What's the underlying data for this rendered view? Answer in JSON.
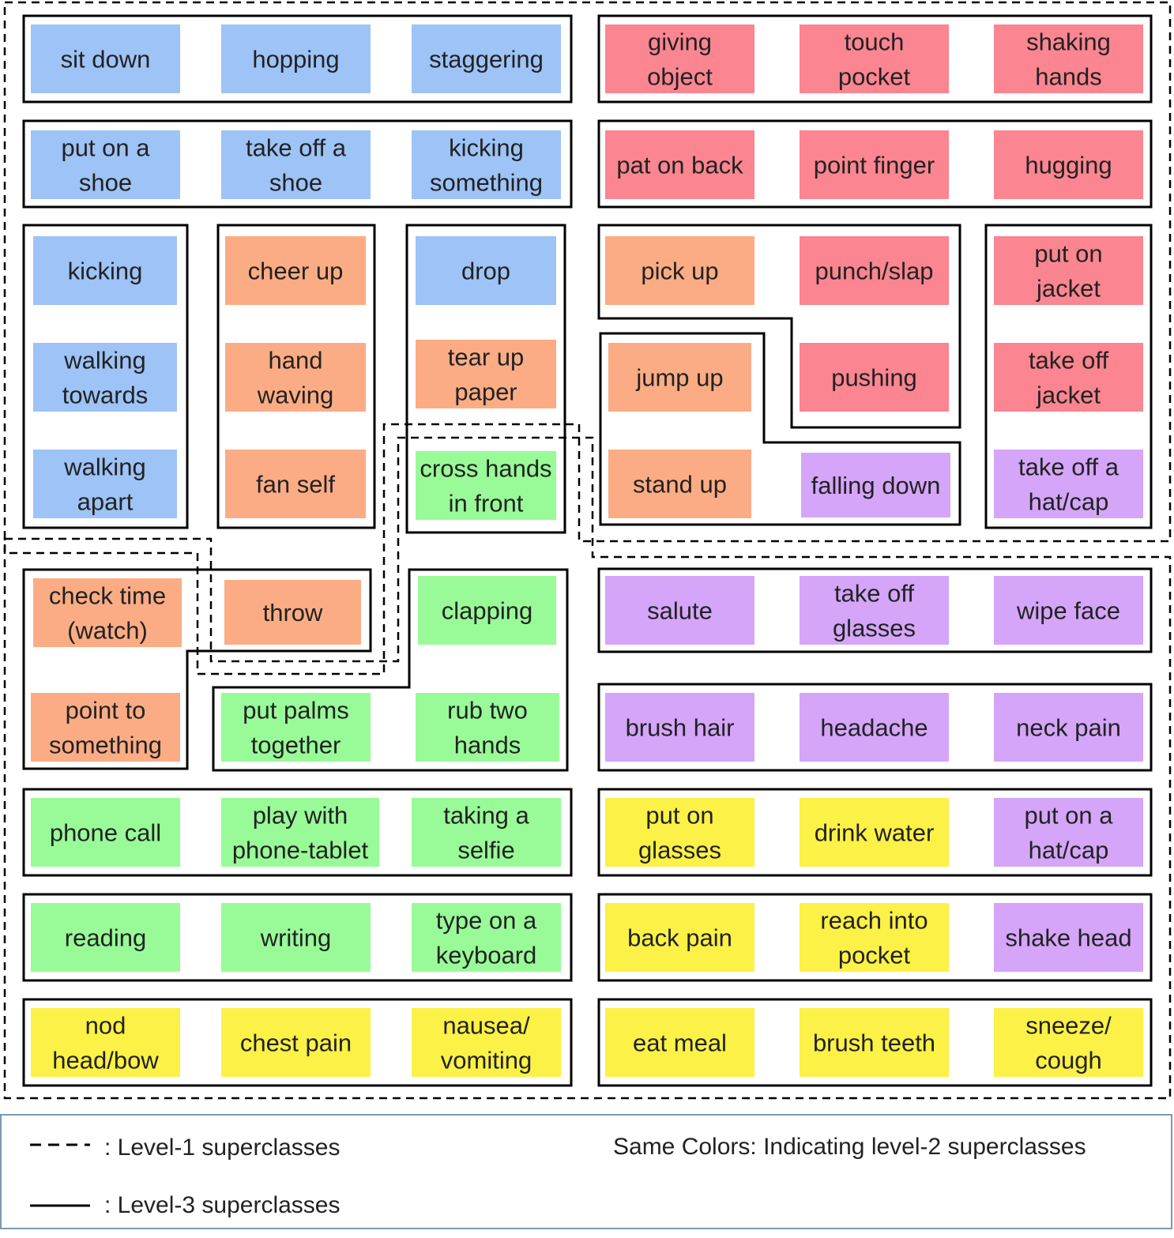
{
  "colors": {
    "blue": "#9dc3f7",
    "red": "#fb8590",
    "orange": "#fcac84",
    "green": "#98fb98",
    "purple": "#d4a5f9",
    "yellow": "#fcf146",
    "line": "#000000",
    "legend_border": "#7a9ab3"
  },
  "classes": [
    {
      "id": "sit-down",
      "lines": [
        "sit down"
      ],
      "color": "blue"
    },
    {
      "id": "hopping",
      "lines": [
        "hopping"
      ],
      "color": "blue"
    },
    {
      "id": "staggering",
      "lines": [
        "staggering"
      ],
      "color": "blue"
    },
    {
      "id": "giving-object",
      "lines": [
        "giving",
        "object"
      ],
      "color": "red"
    },
    {
      "id": "touch-pocket",
      "lines": [
        "touch",
        "pocket"
      ],
      "color": "red"
    },
    {
      "id": "shaking-hands",
      "lines": [
        "shaking",
        "hands"
      ],
      "color": "red"
    },
    {
      "id": "put-on-shoe",
      "lines": [
        "put on a",
        "shoe"
      ],
      "color": "blue"
    },
    {
      "id": "take-off-shoe",
      "lines": [
        "take off a",
        "shoe"
      ],
      "color": "blue"
    },
    {
      "id": "kicking-something",
      "lines": [
        "kicking",
        "something"
      ],
      "color": "blue"
    },
    {
      "id": "pat-on-back",
      "lines": [
        "pat on back"
      ],
      "color": "red"
    },
    {
      "id": "point-finger",
      "lines": [
        "point finger"
      ],
      "color": "red"
    },
    {
      "id": "hugging",
      "lines": [
        "hugging"
      ],
      "color": "red"
    },
    {
      "id": "kicking",
      "lines": [
        "kicking"
      ],
      "color": "blue"
    },
    {
      "id": "cheer-up",
      "lines": [
        "cheer up"
      ],
      "color": "orange"
    },
    {
      "id": "drop",
      "lines": [
        "drop"
      ],
      "color": "blue"
    },
    {
      "id": "pick-up",
      "lines": [
        "pick up"
      ],
      "color": "orange"
    },
    {
      "id": "punch-slap",
      "lines": [
        "punch/slap"
      ],
      "color": "red"
    },
    {
      "id": "put-on-jacket",
      "lines": [
        "put on",
        "jacket"
      ],
      "color": "red"
    },
    {
      "id": "walking-towards",
      "lines": [
        "walking",
        "towards"
      ],
      "color": "blue"
    },
    {
      "id": "hand-waving",
      "lines": [
        "hand",
        "waving"
      ],
      "color": "orange"
    },
    {
      "id": "tear-up-paper",
      "lines": [
        "tear up",
        "paper"
      ],
      "color": "orange"
    },
    {
      "id": "jump-up",
      "lines": [
        "jump up"
      ],
      "color": "orange"
    },
    {
      "id": "pushing",
      "lines": [
        "pushing"
      ],
      "color": "red"
    },
    {
      "id": "take-off-jacket",
      "lines": [
        "take off",
        "jacket"
      ],
      "color": "red"
    },
    {
      "id": "walking-apart",
      "lines": [
        "walking",
        "apart"
      ],
      "color": "blue"
    },
    {
      "id": "fan-self",
      "lines": [
        "fan self"
      ],
      "color": "orange"
    },
    {
      "id": "cross-hands-in-front",
      "lines": [
        "cross hands",
        "in front"
      ],
      "color": "green"
    },
    {
      "id": "stand-up",
      "lines": [
        "stand up"
      ],
      "color": "orange"
    },
    {
      "id": "falling-down",
      "lines": [
        "falling down"
      ],
      "color": "purple"
    },
    {
      "id": "take-off-hat-cap",
      "lines": [
        "take off a",
        "hat/cap"
      ],
      "color": "purple"
    },
    {
      "id": "check-time-watch",
      "lines": [
        "check time",
        "(watch)"
      ],
      "color": "orange"
    },
    {
      "id": "throw",
      "lines": [
        "throw"
      ],
      "color": "orange"
    },
    {
      "id": "clapping",
      "lines": [
        "clapping"
      ],
      "color": "green"
    },
    {
      "id": "salute",
      "lines": [
        "salute"
      ],
      "color": "purple"
    },
    {
      "id": "take-off-glasses",
      "lines": [
        "take off",
        "glasses"
      ],
      "color": "purple"
    },
    {
      "id": "wipe-face",
      "lines": [
        "wipe face"
      ],
      "color": "purple"
    },
    {
      "id": "point-to-something",
      "lines": [
        "point to",
        "something"
      ],
      "color": "orange"
    },
    {
      "id": "put-palms-together",
      "lines": [
        "put palms",
        "together"
      ],
      "color": "green"
    },
    {
      "id": "rub-two-hands",
      "lines": [
        "rub two",
        "hands"
      ],
      "color": "green"
    },
    {
      "id": "brush-hair",
      "lines": [
        "brush hair"
      ],
      "color": "purple"
    },
    {
      "id": "headache",
      "lines": [
        "headache"
      ],
      "color": "purple"
    },
    {
      "id": "neck-pain",
      "lines": [
        "neck pain"
      ],
      "color": "purple"
    },
    {
      "id": "phone-call",
      "lines": [
        "phone call"
      ],
      "color": "green"
    },
    {
      "id": "play-with-phone-tablet",
      "lines": [
        "play with",
        "phone-tablet"
      ],
      "color": "green"
    },
    {
      "id": "taking-a-selfie",
      "lines": [
        "taking a",
        "selfie"
      ],
      "color": "green"
    },
    {
      "id": "put-on-glasses",
      "lines": [
        "put on",
        "glasses"
      ],
      "color": "yellow"
    },
    {
      "id": "drink-water",
      "lines": [
        "drink water"
      ],
      "color": "yellow"
    },
    {
      "id": "put-on-hat-cap",
      "lines": [
        "put on a",
        "hat/cap"
      ],
      "color": "purple"
    },
    {
      "id": "reading",
      "lines": [
        "reading"
      ],
      "color": "green"
    },
    {
      "id": "writing",
      "lines": [
        "writing"
      ],
      "color": "green"
    },
    {
      "id": "type-on-keyboard",
      "lines": [
        "type on a",
        "keyboard"
      ],
      "color": "green"
    },
    {
      "id": "back-pain",
      "lines": [
        "back pain"
      ],
      "color": "yellow"
    },
    {
      "id": "reach-into-pocket",
      "lines": [
        "reach into",
        "pocket"
      ],
      "color": "yellow"
    },
    {
      "id": "shake-head",
      "lines": [
        "shake head"
      ],
      "color": "purple"
    },
    {
      "id": "nod-head-bow",
      "lines": [
        "nod",
        "head/bow"
      ],
      "color": "yellow"
    },
    {
      "id": "chest-pain",
      "lines": [
        "chest pain"
      ],
      "color": "yellow"
    },
    {
      "id": "nausea-vomiting",
      "lines": [
        "nausea/",
        "vomiting"
      ],
      "color": "yellow"
    },
    {
      "id": "eat-meal",
      "lines": [
        "eat meal"
      ],
      "color": "yellow"
    },
    {
      "id": "brush-teeth",
      "lines": [
        "brush teeth"
      ],
      "color": "yellow"
    },
    {
      "id": "sneeze-cough",
      "lines": [
        "sneeze/",
        "cough"
      ],
      "color": "yellow"
    }
  ],
  "legend": {
    "level1": ": Level-1 superclasses",
    "level3": ": Level-3 superclasses",
    "colors_note": "Same Colors: Indicating level-2 superclasses"
  }
}
